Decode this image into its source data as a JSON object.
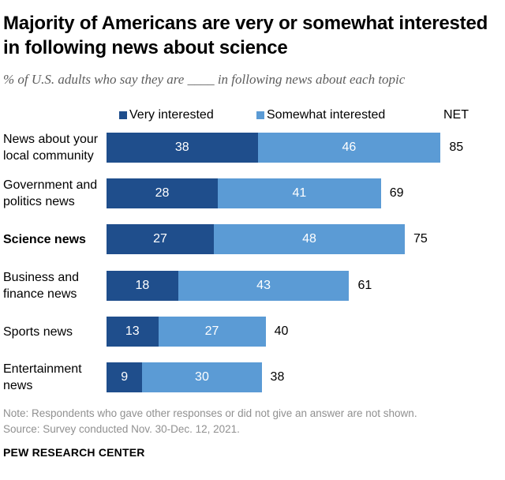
{
  "colors": {
    "very": "#1f4e8c",
    "somewhat": "#5b9bd5"
  },
  "chart_data": {
    "type": "bar",
    "orientation": "horizontal",
    "stacked": true,
    "title": "Majority of Americans are very or somewhat interested in following news about science",
    "subtitle": "% of U.S. adults who say they are ____ in following news about each topic",
    "net_label": "NET",
    "categories": [
      "News about your local community",
      "Government and politics news",
      "Science news",
      "Business and finance news",
      "Sports news",
      "Entertainment news"
    ],
    "highlighted_category": "Science news",
    "series": [
      {
        "name": "Very interested",
        "values": [
          38,
          28,
          27,
          18,
          13,
          9
        ]
      },
      {
        "name": "Somewhat interested",
        "values": [
          46,
          41,
          48,
          43,
          27,
          30
        ]
      }
    ],
    "net": [
      85,
      69,
      75,
      61,
      40,
      38
    ],
    "xlim": [
      0,
      100
    ],
    "grid": false,
    "legend_position": "top"
  },
  "footer": {
    "note": "Note: Respondents who gave other responses or did not give an answer are not shown.",
    "source": "Source: Survey conducted Nov. 30-Dec. 12, 2021.",
    "org": "PEW RESEARCH CENTER"
  }
}
